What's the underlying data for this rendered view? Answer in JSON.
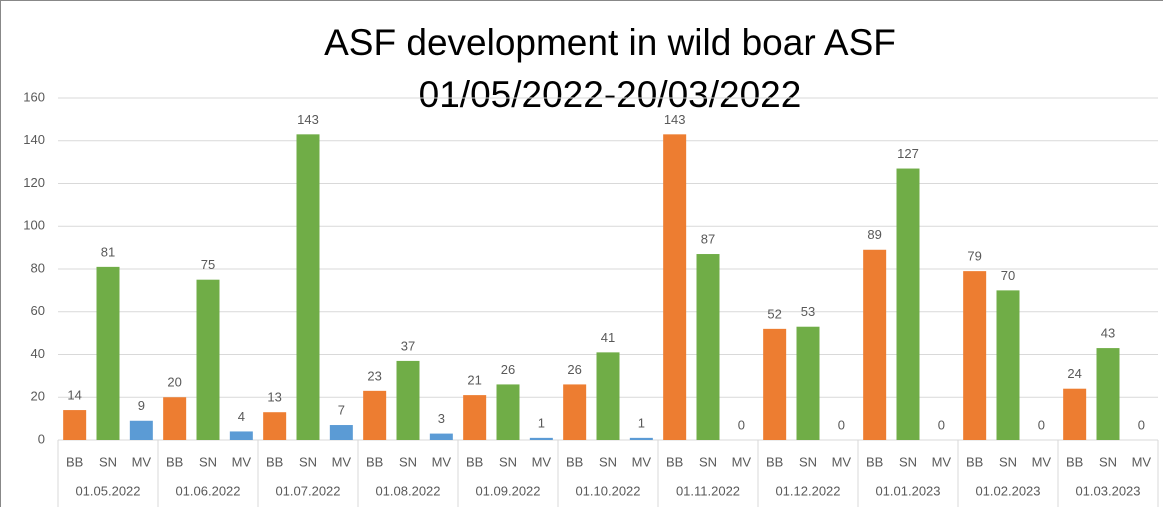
{
  "chart_data": {
    "type": "bar",
    "title": "ASF development in wild boar ASF",
    "subtitle": "01/05/2022-20/03/2022",
    "categories": [
      "01.05.2022",
      "01.06.2022",
      "01.07.2022",
      "01.08.2022",
      "01.09.2022",
      "01.10.2022",
      "01.11.2022",
      "01.12.2022",
      "01.01.2023",
      "01.02.2023",
      "01.03.2023"
    ],
    "series": [
      {
        "name": "BB",
        "color": "#ed7d31",
        "values": [
          14,
          20,
          13,
          23,
          21,
          26,
          143,
          52,
          89,
          79,
          24
        ]
      },
      {
        "name": "SN",
        "color": "#70ad47",
        "values": [
          81,
          75,
          143,
          37,
          26,
          41,
          87,
          53,
          127,
          70,
          43
        ]
      },
      {
        "name": "MV",
        "color": "#5b9bd5",
        "values": [
          9,
          4,
          7,
          3,
          1,
          1,
          0,
          0,
          0,
          0,
          0
        ]
      }
    ],
    "ylim": [
      0,
      160
    ],
    "yticks": [
      0,
      20,
      40,
      60,
      80,
      100,
      120,
      140,
      160
    ],
    "grid": true
  }
}
